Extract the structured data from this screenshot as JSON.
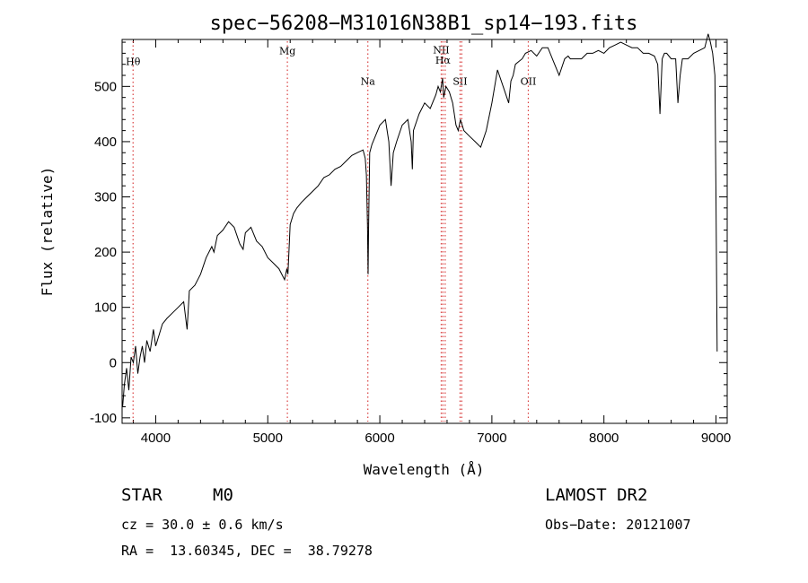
{
  "chart_data": {
    "type": "line",
    "title": "spec−56208−M31016N38B1_sp14−193.fits",
    "xlabel": "Wavelength (Å)",
    "ylabel": "Flux (relative)",
    "xlim": [
      3700,
      9100
    ],
    "ylim": [
      -110,
      585
    ],
    "xticks": [
      4000,
      5000,
      6000,
      7000,
      8000,
      9000
    ],
    "yticks": [
      -100,
      0,
      100,
      200,
      300,
      400,
      500
    ],
    "grid": false,
    "line_color": "#000000",
    "marker_color": "#d94040",
    "spectral_lines": [
      {
        "label": "Hθ",
        "x": 3798,
        "label_y": 539
      },
      {
        "label": "Mg",
        "x": 5175,
        "label_y": 558
      },
      {
        "label": "Na",
        "x": 5893,
        "label_y": 503
      },
      {
        "label": "NII",
        "x": 6548,
        "label_y": 560
      },
      {
        "label": "Hα",
        "x": 6563,
        "label_y": 541
      },
      {
        "label": "NII",
        "x": 6583,
        "label_y": null
      },
      {
        "label": "SII",
        "x": 6716,
        "label_y": 503
      },
      {
        "label": "SII",
        "x": 6731,
        "label_y": null
      },
      {
        "label": "OII",
        "x": 7325,
        "label_y": 503
      }
    ],
    "series": [
      {
        "x": [
          3705,
          3720,
          3740,
          3760,
          3780,
          3800,
          3820,
          3840,
          3860,
          3880,
          3900,
          3920,
          3950,
          3980,
          4000,
          4030,
          4060,
          4100,
          4150,
          4200,
          4250,
          4280,
          4300,
          4350,
          4400,
          4450,
          4500,
          4520,
          4550,
          4600,
          4650,
          4700,
          4750,
          4780,
          4800,
          4850,
          4900,
          4950,
          5000,
          5050,
          5100,
          5150,
          5170,
          5180,
          5200,
          5230,
          5260,
          5300,
          5350,
          5400,
          5450,
          5500,
          5550,
          5600,
          5650,
          5700,
          5750,
          5800,
          5850,
          5870,
          5880,
          5890,
          5895,
          5900,
          5910,
          5930,
          5960,
          6000,
          6050,
          6080,
          6100,
          6120,
          6150,
          6200,
          6250,
          6280,
          6290,
          6300,
          6350,
          6400,
          6450,
          6500,
          6520,
          6540,
          6560,
          6570,
          6590,
          6620,
          6650,
          6680,
          6700,
          6720,
          6750,
          6800,
          6850,
          6900,
          6950,
          7000,
          7050,
          7100,
          7150,
          7170,
          7190,
          7210,
          7240,
          7270,
          7300,
          7350,
          7400,
          7450,
          7500,
          7550,
          7600,
          7650,
          7680,
          7700,
          7750,
          7800,
          7850,
          7900,
          7950,
          8000,
          8050,
          8100,
          8150,
          8200,
          8250,
          8300,
          8350,
          8400,
          8450,
          8480,
          8500,
          8520,
          8540,
          8560,
          8580,
          8600,
          8640,
          8660,
          8680,
          8700,
          8750,
          8800,
          8850,
          8900,
          8930,
          8950,
          8970,
          8990,
          9000,
          9010
        ],
        "values": [
          -80,
          -40,
          -10,
          -50,
          10,
          0,
          30,
          -20,
          10,
          30,
          0,
          40,
          20,
          60,
          30,
          50,
          70,
          80,
          90,
          100,
          110,
          60,
          130,
          140,
          160,
          190,
          210,
          200,
          230,
          240,
          255,
          245,
          215,
          205,
          235,
          245,
          220,
          210,
          190,
          180,
          170,
          150,
          170,
          160,
          250,
          270,
          280,
          290,
          300,
          310,
          320,
          335,
          340,
          350,
          355,
          365,
          375,
          380,
          385,
          370,
          340,
          250,
          160,
          250,
          380,
          395,
          410,
          430,
          440,
          400,
          320,
          380,
          400,
          430,
          440,
          400,
          350,
          420,
          450,
          470,
          460,
          485,
          500,
          490,
          515,
          480,
          500,
          490,
          470,
          430,
          420,
          440,
          420,
          410,
          400,
          390,
          420,
          470,
          530,
          500,
          470,
          510,
          520,
          540,
          545,
          550,
          560,
          565,
          555,
          570,
          570,
          545,
          520,
          550,
          555,
          550,
          550,
          550,
          560,
          560,
          565,
          560,
          570,
          575,
          580,
          575,
          570,
          570,
          560,
          560,
          555,
          540,
          450,
          550,
          560,
          560,
          555,
          550,
          550,
          470,
          520,
          550,
          550,
          560,
          565,
          570,
          595,
          580,
          560,
          520,
          300,
          20
        ]
      }
    ]
  },
  "footer": {
    "object_type": "STAR",
    "subclass": "M0",
    "survey": "LAMOST DR2",
    "cz": "cz = 30.0 ± 0.6 km/s",
    "obs_date": "Obs−Date: 20121007",
    "coords": "RA =  13.60345, DEC =  38.79278"
  }
}
